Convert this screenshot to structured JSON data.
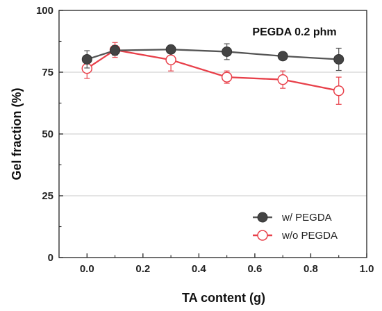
{
  "chart_data": {
    "type": "line",
    "title": "",
    "annotation": "PEGDA 0.2 phm",
    "xlabel": "TA content (g)",
    "ylabel": "Gel fraction (%)",
    "xlim": [
      -0.1,
      1.0
    ],
    "ylim": [
      0,
      100
    ],
    "xticks": [
      0.0,
      0.2,
      0.4,
      0.6,
      0.8,
      1.0
    ],
    "xtick_labels": [
      "0.0",
      "0.2",
      "0.4",
      "0.6",
      "0.8",
      "1.0"
    ],
    "yticks": [
      0,
      25,
      50,
      75,
      100
    ],
    "ytick_labels": [
      "0",
      "25",
      "50",
      "75",
      "100"
    ],
    "grid": "horizontal",
    "legend_position": "bottom-right",
    "x": [
      0.0,
      0.1,
      0.3,
      0.5,
      0.7,
      0.9
    ],
    "series": [
      {
        "name": "w/ PEGDA",
        "values": [
          80.2,
          83.8,
          84.2,
          83.3,
          81.5,
          80.2
        ],
        "errors": [
          3.5,
          2.0,
          1.2,
          3.2,
          1.5,
          4.5
        ],
        "line_color": "#555555",
        "marker": "filled-circle",
        "marker_color": "#444444"
      },
      {
        "name": "w/o PEGDA",
        "values": [
          76.5,
          84.0,
          80.0,
          73.0,
          72.0,
          67.5
        ],
        "errors": [
          4.0,
          3.0,
          4.5,
          2.5,
          3.5,
          5.5
        ],
        "line_color": "#e8404a",
        "marker": "open-circle",
        "marker_color": "#e8404a"
      }
    ]
  }
}
